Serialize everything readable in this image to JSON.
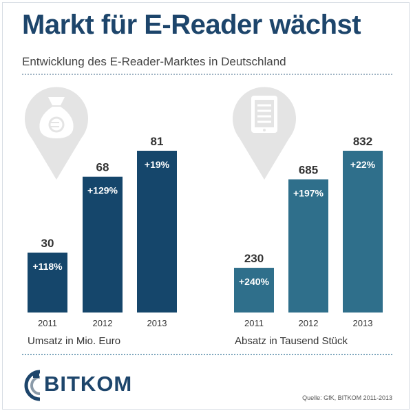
{
  "header": {
    "title": "Markt für E-Reader wächst",
    "subtitle": "Entwicklung des E-Reader-Marktes in Deutschland"
  },
  "icons": {
    "left": "money-bag-euro-icon",
    "right": "e-reader-tablet-icon"
  },
  "colors": {
    "title": "#1d456b",
    "left_bars": "#15466b",
    "right_bars": "#2f6f8b",
    "pin": "#e4e4e4"
  },
  "chart_data": [
    {
      "type": "bar",
      "categories": [
        "2011",
        "2012",
        "2013"
      ],
      "values": [
        30,
        68,
        81
      ],
      "growth": [
        "+118%",
        "+129%",
        "+19%"
      ],
      "xlabel": "Umsatz in Mio. Euro",
      "ylim": [
        0,
        81
      ]
    },
    {
      "type": "bar",
      "categories": [
        "2011",
        "2012",
        "2013"
      ],
      "values": [
        230,
        685,
        832
      ],
      "growth": [
        "+240%",
        "+197%",
        "+22%"
      ],
      "xlabel": "Absatz in Tausend Stück",
      "ylim": [
        0,
        832
      ]
    }
  ],
  "footer": {
    "logo_text": "BITKOM",
    "source": "Quelle: GfK, BITKOM 2011-2013"
  }
}
